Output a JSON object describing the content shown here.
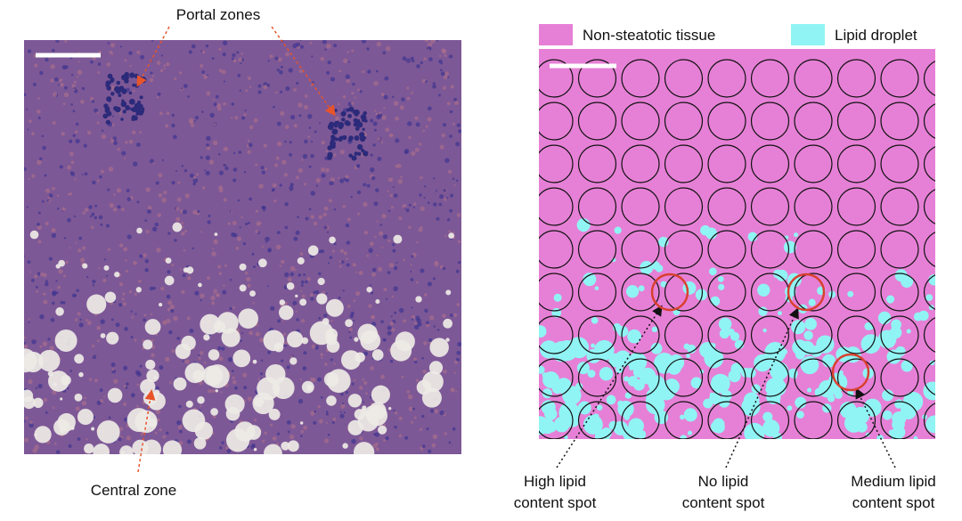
{
  "left_panel": {
    "annotations": [
      "Portal zones",
      "Central zone"
    ]
  },
  "right_panel": {
    "legend": [
      {
        "label": "Non-steatotic tissue",
        "color": "#e680d6"
      },
      {
        "label": "Lipid droplet",
        "color": "#90f4f4"
      }
    ],
    "spot_labels": [
      [
        "High lipid",
        "content spot"
      ],
      [
        "No lipid",
        "content spot"
      ],
      [
        "Medium lipid",
        "content spot"
      ]
    ]
  }
}
